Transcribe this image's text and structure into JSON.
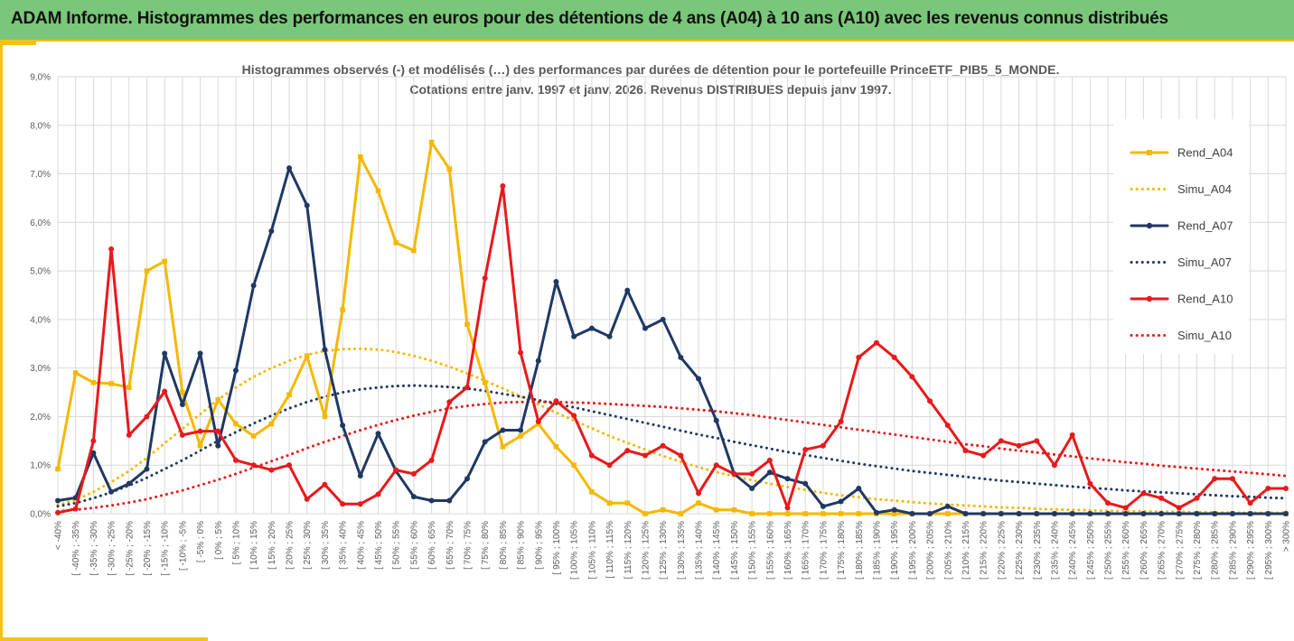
{
  "header": {
    "title": "ADAM Informe. Histogrammes des performances en euros pour des détentions de 4 ans (A04) à 10 ans (A10) avec les revenus connus distribués"
  },
  "chart_data": {
    "type": "line",
    "title_line1": "Histogrammes observés (-) et modélisés (…) des performances par durées de détention pour  le portefeuille PrinceETF_PIB5_5_MONDE.",
    "title_line2": "Cotations  entre janv. 1997 et janv. 2026. Revenus DISTRIBUES depuis janv 1997.",
    "categories": [
      "< -40%",
      "[ -40% ; -35%",
      "[ -35% ; -30%",
      "[ -30% ; -25%",
      "[ -25% ; -20%",
      "[ -20% ; -15%",
      "[ -15% ; -10%",
      "[ -10% ; -5%",
      "[ -5% ; 0%",
      "[ 0% ; 5%",
      "[ 5% ; 10%",
      "[ 10% ; 15%",
      "[ 15% ; 20%",
      "[ 20% ; 25%",
      "[ 25% ; 30%",
      "[ 30% ; 35%",
      "[ 35% ; 40%",
      "[ 40% ; 45%",
      "[ 45% ; 50%",
      "[ 50% ; 55%",
      "[ 55% ; 60%",
      "[ 60% ; 65%",
      "[ 65% ; 70%",
      "[ 70% ; 75%",
      "[ 75% ; 80%",
      "[ 80% ; 85%",
      "[ 85% ; 90%",
      "[ 90% ; 95%",
      "[ 95% ; 100%",
      "[ 100% ; 105%",
      "[ 105% ; 110%",
      "[ 110% ; 115%",
      "[ 115% ; 120%",
      "[ 120% ; 125%",
      "[ 125% ; 130%",
      "[ 130% ; 135%",
      "[ 135% ; 140%",
      "[ 140% ; 145%",
      "[ 145% ; 150%",
      "[ 150% ; 155%",
      "[ 155% ; 160%",
      "[ 160% ; 165%",
      "[ 165% ; 170%",
      "[ 170% ; 175%",
      "[ 175% ; 180%",
      "[ 180% ; 185%",
      "[ 185% ; 190%",
      "[ 190% ; 195%",
      "[ 195% ; 200%",
      "[ 200% ; 205%",
      "[ 205% ; 210%",
      "[ 210% ; 215%",
      "[ 215% ; 220%",
      "[ 220% ; 225%",
      "[ 225% ; 230%",
      "[ 230% ; 235%",
      "[ 235% ; 240%",
      "[ 240% ; 245%",
      "[ 245% ; 250%",
      "[ 250% ; 255%",
      "[ 255% ; 260%",
      "[ 260% ; 265%",
      "[ 265% ; 270%",
      "[ 270% ; 275%",
      "[ 275% ; 280%",
      "[ 280% ; 285%",
      "[ 285% ; 290%",
      "[ 290% ; 295%",
      "[ 295% ; 300%",
      "> 300%"
    ],
    "y_ticks": [
      "0,0%",
      "1,0%",
      "2,0%",
      "3,0%",
      "4,0%",
      "5,0%",
      "6,0%",
      "7,0%",
      "8,0%",
      "9,0%"
    ],
    "ylim": [
      0,
      9
    ],
    "y_unit": "%",
    "grid": true,
    "legend_position": "right",
    "series": [
      {
        "name": "Rend_A04",
        "color": "#f5b800",
        "style": "solid",
        "markers": true,
        "values": [
          0.92,
          2.9,
          2.7,
          2.68,
          2.6,
          5.0,
          5.2,
          2.5,
          1.4,
          2.35,
          1.85,
          1.6,
          1.85,
          2.45,
          3.25,
          2.0,
          4.2,
          7.35,
          6.65,
          5.58,
          5.42,
          7.65,
          7.1,
          3.9,
          2.7,
          1.38,
          1.6,
          1.85,
          1.38,
          1.0,
          0.45,
          0.22,
          0.22,
          0.0,
          0.08,
          0.0,
          0.22,
          0.08,
          0.08,
          0.0,
          0.0,
          0.0,
          0.0,
          0.0,
          0.0,
          0.0,
          0.0,
          0.0,
          0.0,
          0.0,
          0.0,
          0.0,
          0.0,
          0.0,
          0.0,
          0.0,
          0.0,
          0.0,
          0.0,
          0.0,
          0.0,
          0.0,
          0.0,
          0.0,
          0.0,
          0.0,
          0.0,
          0.0,
          0.0,
          0.0
        ]
      },
      {
        "name": "Simu_A04",
        "color": "#f5b800",
        "style": "dotted",
        "markers": false,
        "values": [
          0.18,
          0.28,
          0.45,
          0.65,
          0.88,
          1.15,
          1.45,
          1.75,
          2.05,
          2.35,
          2.6,
          2.82,
          3.0,
          3.15,
          3.27,
          3.35,
          3.39,
          3.4,
          3.38,
          3.33,
          3.25,
          3.15,
          3.03,
          2.89,
          2.74,
          2.58,
          2.42,
          2.25,
          2.08,
          1.92,
          1.76,
          1.6,
          1.46,
          1.32,
          1.19,
          1.07,
          0.96,
          0.86,
          0.77,
          0.69,
          0.62,
          0.55,
          0.49,
          0.43,
          0.38,
          0.34,
          0.3,
          0.27,
          0.24,
          0.21,
          0.19,
          0.17,
          0.15,
          0.13,
          0.12,
          0.1,
          0.09,
          0.08,
          0.07,
          0.06,
          0.05,
          0.05,
          0.04,
          0.04,
          0.03,
          0.03,
          0.02,
          0.02,
          0.02,
          0.02
        ]
      },
      {
        "name": "Rend_A07",
        "color": "#1f3864",
        "style": "solid",
        "markers": true,
        "values": [
          0.27,
          0.33,
          1.25,
          0.45,
          0.62,
          0.92,
          3.3,
          2.25,
          3.3,
          1.4,
          2.95,
          4.7,
          5.82,
          7.12,
          6.35,
          3.38,
          1.82,
          0.78,
          1.65,
          0.88,
          0.35,
          0.27,
          0.27,
          0.72,
          1.48,
          1.72,
          1.72,
          3.15,
          4.78,
          3.65,
          3.82,
          3.65,
          4.6,
          3.82,
          4.0,
          3.22,
          2.78,
          1.92,
          0.82,
          0.52,
          0.85,
          0.72,
          0.62,
          0.15,
          0.25,
          0.52,
          0.02,
          0.08,
          0.0,
          0.0,
          0.15,
          0.0,
          0.0,
          0.0,
          0.0,
          0.0,
          0.0,
          0.0,
          0.0,
          0.0,
          0.0,
          0.0,
          0.0,
          0.0,
          0.0,
          0.0,
          0.0,
          0.0,
          0.0,
          0.0
        ]
      },
      {
        "name": "Simu_A07",
        "color": "#1f3864",
        "style": "dotted",
        "markers": false,
        "values": [
          0.15,
          0.22,
          0.32,
          0.44,
          0.58,
          0.74,
          0.92,
          1.1,
          1.3,
          1.5,
          1.68,
          1.86,
          2.02,
          2.17,
          2.3,
          2.41,
          2.5,
          2.56,
          2.6,
          2.63,
          2.64,
          2.63,
          2.61,
          2.58,
          2.53,
          2.47,
          2.41,
          2.34,
          2.26,
          2.19,
          2.11,
          2.03,
          1.95,
          1.87,
          1.79,
          1.71,
          1.63,
          1.56,
          1.48,
          1.41,
          1.34,
          1.27,
          1.21,
          1.15,
          1.09,
          1.03,
          0.98,
          0.93,
          0.88,
          0.84,
          0.8,
          0.76,
          0.72,
          0.68,
          0.65,
          0.62,
          0.59,
          0.56,
          0.53,
          0.51,
          0.48,
          0.46,
          0.44,
          0.42,
          0.4,
          0.38,
          0.36,
          0.35,
          0.33,
          0.32
        ]
      },
      {
        "name": "Rend_A10",
        "color": "#e8191c",
        "style": "solid",
        "markers": true,
        "values": [
          0.02,
          0.1,
          1.5,
          5.45,
          1.62,
          2.0,
          2.52,
          1.62,
          1.7,
          1.7,
          1.1,
          1.0,
          0.9,
          1.0,
          0.3,
          0.6,
          0.2,
          0.2,
          0.4,
          0.9,
          0.82,
          1.1,
          2.3,
          2.6,
          4.85,
          6.75,
          3.32,
          1.9,
          2.32,
          2.02,
          1.2,
          1.0,
          1.3,
          1.2,
          1.4,
          1.2,
          0.42,
          1.0,
          0.82,
          0.82,
          1.1,
          0.12,
          1.32,
          1.4,
          1.9,
          3.22,
          3.52,
          3.22,
          2.82,
          2.32,
          1.82,
          1.3,
          1.2,
          1.5,
          1.4,
          1.5,
          1.0,
          1.62,
          0.62,
          0.22,
          0.12,
          0.42,
          0.32,
          0.12,
          0.32,
          0.72,
          0.72,
          0.22,
          0.52,
          0.52
        ]
      },
      {
        "name": "Simu_A10",
        "color": "#e8191c",
        "style": "dotted",
        "markers": false,
        "values": [
          0.05,
          0.08,
          0.12,
          0.17,
          0.23,
          0.3,
          0.39,
          0.48,
          0.59,
          0.7,
          0.82,
          0.95,
          1.08,
          1.21,
          1.35,
          1.48,
          1.6,
          1.72,
          1.83,
          1.93,
          2.02,
          2.1,
          2.17,
          2.22,
          2.26,
          2.29,
          2.3,
          2.3,
          2.3,
          2.29,
          2.28,
          2.26,
          2.24,
          2.22,
          2.2,
          2.17,
          2.14,
          2.11,
          2.07,
          2.03,
          1.98,
          1.93,
          1.88,
          1.83,
          1.78,
          1.73,
          1.68,
          1.63,
          1.58,
          1.53,
          1.48,
          1.43,
          1.39,
          1.34,
          1.3,
          1.26,
          1.22,
          1.18,
          1.14,
          1.1,
          1.06,
          1.03,
          0.99,
          0.96,
          0.93,
          0.9,
          0.87,
          0.84,
          0.81,
          0.78
        ]
      }
    ]
  }
}
